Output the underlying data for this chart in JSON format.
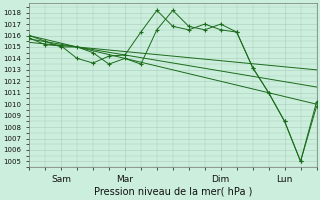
{
  "bg_color": "#cceedd",
  "grid_color": "#aaccbb",
  "line_color": "#1a6b1a",
  "marker_color": "#1a6b1a",
  "xlabel_text": "Pression niveau de la mer( hPa )",
  "xtick_labels": [
    "Sam",
    "Mar",
    "Dim",
    "Lun"
  ],
  "xtick_positions": [
    12,
    36,
    72,
    96
  ],
  "ylim": [
    1004.5,
    1018.8
  ],
  "yticks": [
    1005,
    1006,
    1007,
    1008,
    1009,
    1010,
    1011,
    1012,
    1013,
    1014,
    1015,
    1016,
    1017,
    1018
  ],
  "xlim": [
    0,
    108
  ],
  "series_trend1_x": [
    0,
    108
  ],
  "series_trend1_y": [
    1016.0,
    1010.0
  ],
  "series_trend2_x": [
    0,
    108
  ],
  "series_trend2_y": [
    1015.7,
    1011.5
  ],
  "series_trend3_x": [
    0,
    108
  ],
  "series_trend3_y": [
    1015.4,
    1013.0
  ],
  "series_main_x": [
    0,
    6,
    12,
    18,
    24,
    30,
    36,
    42,
    48,
    54,
    60,
    66,
    72,
    78,
    84,
    90,
    96,
    102,
    108
  ],
  "series_main_y": [
    1015.8,
    1015.2,
    1015.1,
    1014.0,
    1013.6,
    1014.2,
    1014.3,
    1016.3,
    1018.2,
    1016.8,
    1016.5,
    1017.0,
    1016.5,
    1016.3,
    1013.2,
    1011.0,
    1008.5,
    1005.0,
    1009.8
  ],
  "series_alt_x": [
    0,
    6,
    12,
    18,
    24,
    30,
    36,
    42,
    48,
    54,
    60,
    66,
    72,
    78,
    84,
    90,
    96,
    102,
    108
  ],
  "series_alt_y": [
    1016.0,
    1015.5,
    1015.0,
    1015.0,
    1014.5,
    1013.5,
    1014.0,
    1013.5,
    1016.5,
    1018.2,
    1016.8,
    1016.5,
    1017.0,
    1016.3,
    1013.2,
    1011.0,
    1008.5,
    1005.0,
    1010.2
  ],
  "xlabel_fontsize": 7,
  "ytick_fontsize": 5,
  "xtick_fontsize": 6.5
}
